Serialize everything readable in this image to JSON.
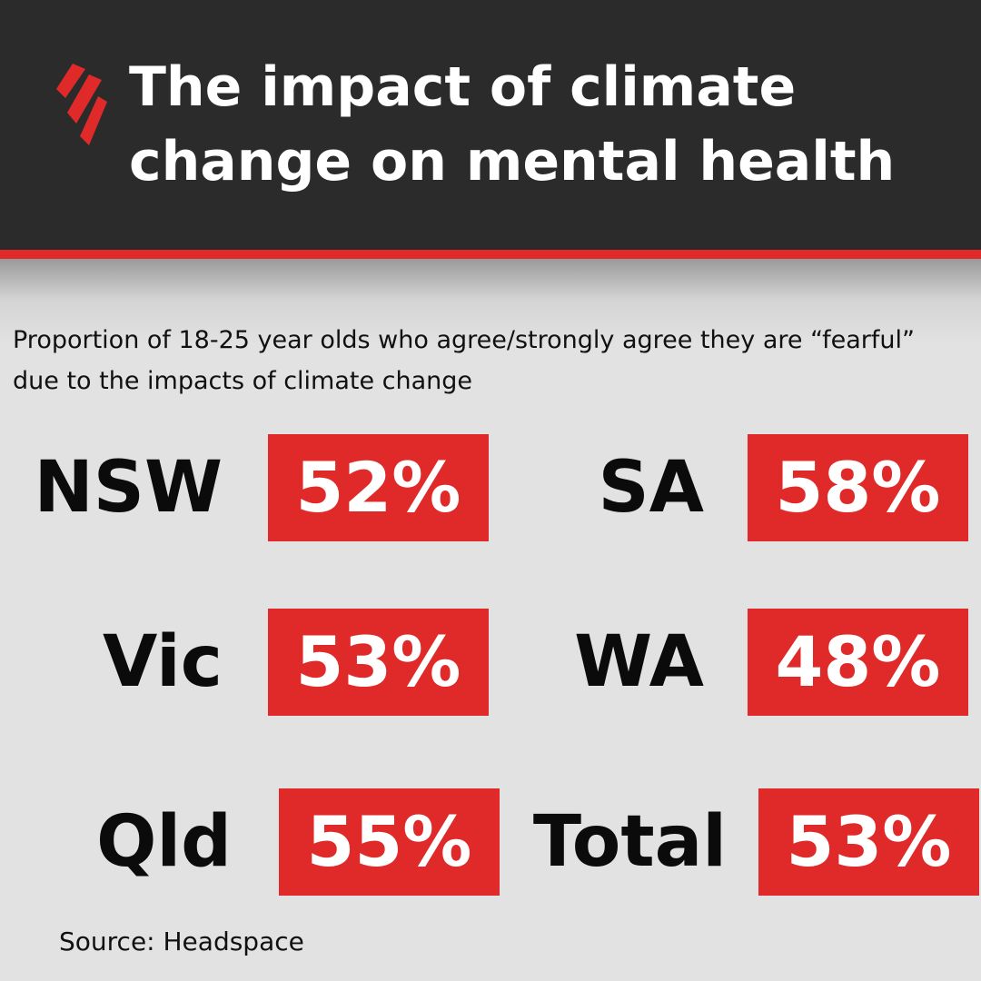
{
  "header": {
    "title": "The impact of climate change on mental health"
  },
  "subtitle": "Proportion of 18-25 year olds who agree/strongly agree they are “fearful” due to the impacts of climate change",
  "items": [
    {
      "label": "NSW",
      "value": "52%"
    },
    {
      "label": "SA",
      "value": "58%"
    },
    {
      "label": "Vic",
      "value": "53%"
    },
    {
      "label": "WA",
      "value": "48%"
    },
    {
      "label": "Qld",
      "value": "55%"
    },
    {
      "label": "Total",
      "value": "53%"
    }
  ],
  "source": "Source: Headspace"
}
